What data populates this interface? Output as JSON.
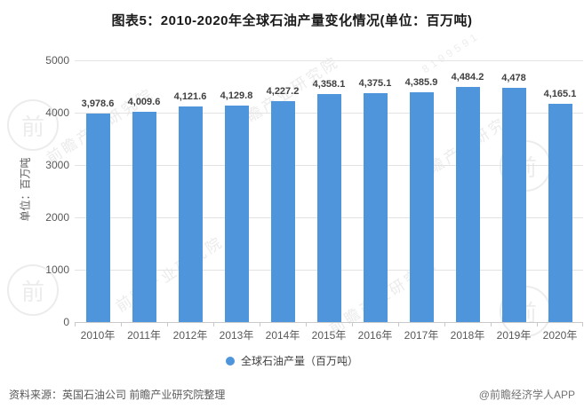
{
  "header": {
    "title": "图表5：2010-2020年全球石油产量变化情况(单位：百万吨)"
  },
  "chart_data": {
    "type": "bar",
    "title": "图表5：2010-2020年全球石油产量变化情况(单位：百万吨)",
    "categories": [
      "2010年",
      "2011年",
      "2012年",
      "2013年",
      "2014年",
      "2015年",
      "2016年",
      "2017年",
      "2018年",
      "2019年",
      "2020年"
    ],
    "values": [
      3978.6,
      4009.6,
      4121.6,
      4129.8,
      4227.2,
      4358.1,
      4375.1,
      4385.9,
      4484.2,
      4478,
      4165.1
    ],
    "labels": [
      "3,978.6",
      "4,009.6",
      "4,121.6",
      "4,129.8",
      "4,227.2",
      "4,358.1",
      "4,375.1",
      "4,385.9",
      "4,484.2",
      "4,478",
      "4,165.1"
    ],
    "xlabel": "",
    "ylabel": "单位：百万吨",
    "ylim": [
      0,
      5000
    ],
    "yticks": [
      0,
      1000,
      2000,
      3000,
      4000,
      5000
    ],
    "grid": "on",
    "legend_position": "bottom",
    "legend": [
      "全球石油产量（百万吨）"
    ],
    "bar_color": "#4E95DB",
    "grid_color": "#e3e3e3",
    "axis_color": "#c9c9c9"
  },
  "legend": {
    "label": "全球石油产量（百万吨）"
  },
  "footer": {
    "source": "资料来源：英国石油公司 前瞻产业研究院整理",
    "credit": "@前瞻经济学人APP"
  },
  "watermark": {
    "text": "前瞻产业研究院",
    "digits": "8199591",
    "logo_glyph": "前"
  }
}
